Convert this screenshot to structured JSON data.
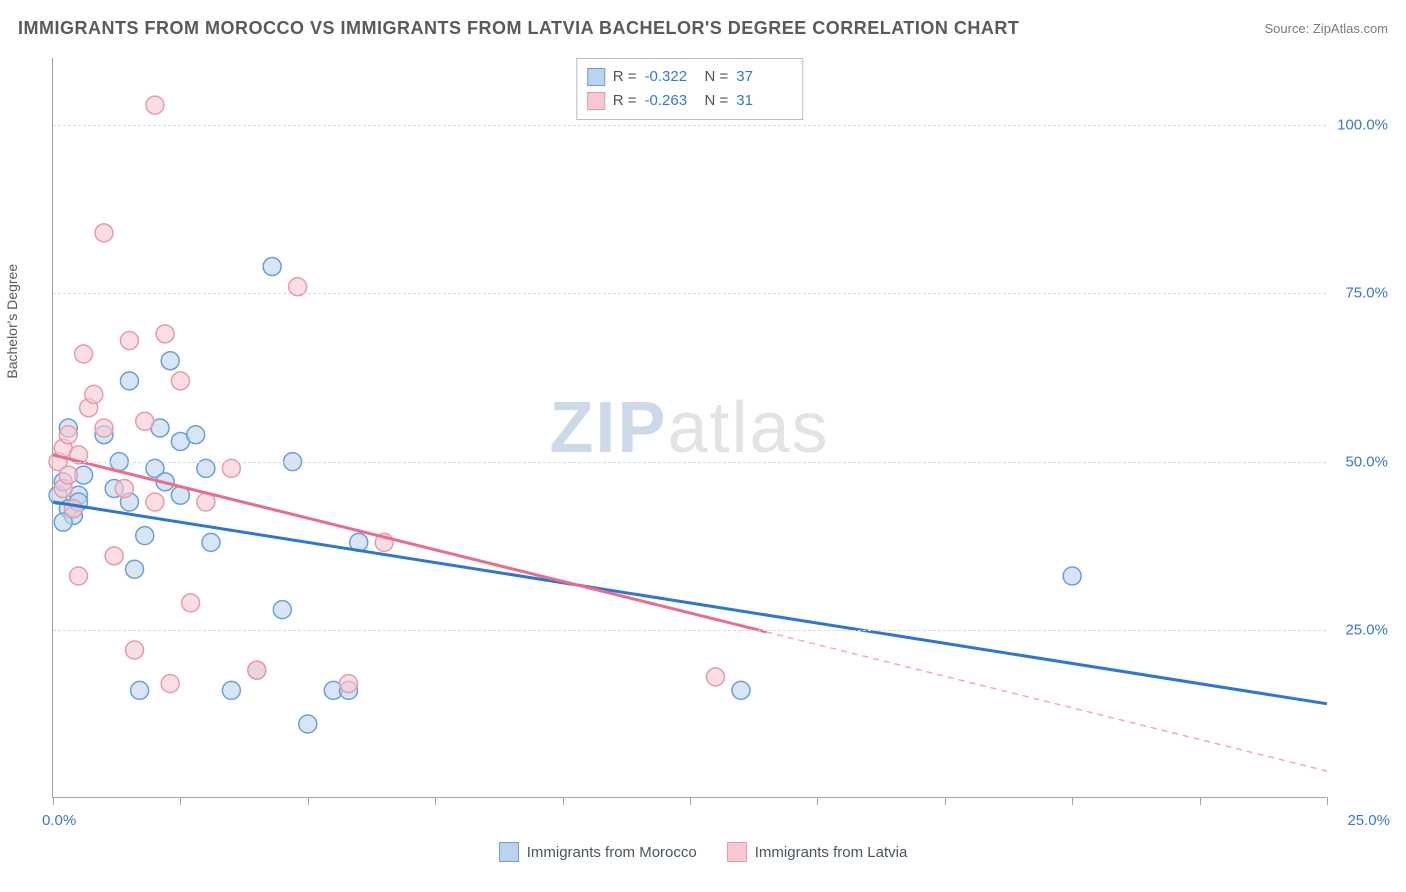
{
  "title": "IMMIGRANTS FROM MOROCCO VS IMMIGRANTS FROM LATVIA BACHELOR'S DEGREE CORRELATION CHART",
  "source": "Source: ZipAtlas.com",
  "watermark": {
    "zip": "ZIP",
    "atlas": "atlas"
  },
  "ylabel": "Bachelor's Degree",
  "axes": {
    "xlim": [
      0,
      25
    ],
    "ylim": [
      0,
      110
    ],
    "x_tick_step": 2.5,
    "y_gridlines": [
      25,
      50,
      75,
      100
    ],
    "y_tick_labels": [
      "25.0%",
      "50.0%",
      "75.0%",
      "100.0%"
    ],
    "x_start_label": "0.0%",
    "x_end_label": "25.0%",
    "grid_color": "#d5dbe1",
    "axis_color": "#9aa4af",
    "tick_label_color": "#3a78c9"
  },
  "series": [
    {
      "name": "Immigrants from Morocco",
      "fill": "#bcd3ef",
      "stroke": "#6b9fd8",
      "line_stroke": "#2f76cf",
      "marker_radius": 9,
      "R": "-0.322",
      "N": "37",
      "trend": {
        "x1": 0,
        "y1": 44,
        "x2": 25,
        "y2": 14,
        "solid_to_x": 25
      },
      "points": [
        [
          0.1,
          45
        ],
        [
          0.2,
          47
        ],
        [
          0.3,
          43
        ],
        [
          0.3,
          55
        ],
        [
          0.4,
          42
        ],
        [
          0.5,
          45
        ],
        [
          0.6,
          48
        ],
        [
          0.2,
          41
        ],
        [
          1.0,
          54
        ],
        [
          1.2,
          46
        ],
        [
          1.3,
          50
        ],
        [
          1.5,
          44
        ],
        [
          1.5,
          62
        ],
        [
          1.6,
          34
        ],
        [
          1.7,
          16
        ],
        [
          1.8,
          39
        ],
        [
          2.0,
          49
        ],
        [
          2.1,
          55
        ],
        [
          2.2,
          47
        ],
        [
          2.3,
          65
        ],
        [
          2.5,
          45
        ],
        [
          2.5,
          53
        ],
        [
          2.8,
          54
        ],
        [
          3.0,
          49
        ],
        [
          3.1,
          38
        ],
        [
          3.5,
          16
        ],
        [
          4.0,
          19
        ],
        [
          4.3,
          79
        ],
        [
          4.5,
          28
        ],
        [
          4.7,
          50
        ],
        [
          5.0,
          11
        ],
        [
          5.5,
          16
        ],
        [
          5.8,
          16
        ],
        [
          6.0,
          38
        ],
        [
          13.5,
          16
        ],
        [
          20.0,
          33
        ],
        [
          0.5,
          44
        ]
      ]
    },
    {
      "name": "Immigrants from Latvia",
      "fill": "#f6c8d2",
      "stroke": "#e59bab",
      "line_stroke": "#e96d8f",
      "marker_radius": 9,
      "R": "-0.263",
      "N": "31",
      "trend": {
        "x1": 0,
        "y1": 51,
        "x2": 25,
        "y2": 4,
        "solid_to_x": 14
      },
      "points": [
        [
          0.1,
          50
        ],
        [
          0.2,
          52
        ],
        [
          0.2,
          46
        ],
        [
          0.3,
          48
        ],
        [
          0.4,
          43
        ],
        [
          0.5,
          51
        ],
        [
          0.5,
          33
        ],
        [
          0.6,
          66
        ],
        [
          0.7,
          58
        ],
        [
          0.8,
          60
        ],
        [
          1.0,
          55
        ],
        [
          1.0,
          84
        ],
        [
          1.2,
          36
        ],
        [
          1.4,
          46
        ],
        [
          1.5,
          68
        ],
        [
          1.6,
          22
        ],
        [
          1.8,
          56
        ],
        [
          2.0,
          103
        ],
        [
          2.0,
          44
        ],
        [
          2.2,
          69
        ],
        [
          2.3,
          17
        ],
        [
          2.5,
          62
        ],
        [
          2.7,
          29
        ],
        [
          3.0,
          44
        ],
        [
          3.5,
          49
        ],
        [
          4.0,
          19
        ],
        [
          4.8,
          76
        ],
        [
          5.8,
          17
        ],
        [
          6.5,
          38
        ],
        [
          13.0,
          18
        ],
        [
          0.3,
          54
        ]
      ]
    }
  ],
  "legend": {
    "series1_label": "Immigrants from Morocco",
    "series2_label": "Immigrants from Latvia"
  },
  "stats_labels": {
    "R": "R =",
    "N": "N ="
  }
}
